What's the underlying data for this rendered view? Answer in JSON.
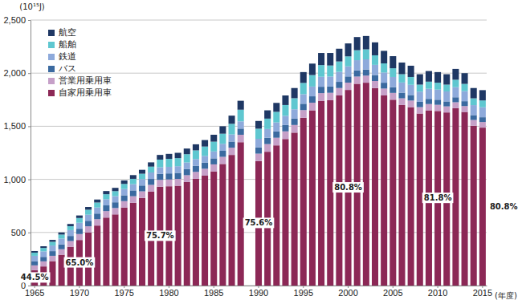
{
  "chart_data": {
    "type": "bar",
    "stacked": true,
    "grid": true,
    "legend": "top-left",
    "y_label": "(10¹⁵J)",
    "x_label": "(年度)",
    "categories": [
      "1965",
      null,
      null,
      null,
      null,
      "1970",
      null,
      null,
      null,
      null,
      "1975",
      null,
      null,
      null,
      null,
      "1980",
      null,
      null,
      null,
      null,
      "1985",
      null,
      null,
      null,
      null,
      "1990",
      null,
      null,
      null,
      null,
      "1995",
      null,
      null,
      null,
      null,
      "2000",
      null,
      null,
      null,
      null,
      "2005",
      null,
      null,
      null,
      null,
      "2010",
      null,
      null,
      null,
      null,
      "2015"
    ],
    "ylim": [
      0,
      2500
    ],
    "yticks": [
      0,
      500,
      {
        "value": 1000,
        "label": "1,000"
      },
      {
        "value": 1500,
        "label": "1,500"
      },
      {
        "value": 2000,
        "label": "2,000"
      },
      {
        "value": 2500,
        "label": "2,500"
      }
    ],
    "series": [
      {
        "name": "自家用乗用車",
        "color": "#8c2856",
        "values": [
          145,
          180,
          230,
          290,
          365,
          429,
          500,
          565,
          640,
          670,
          735,
          780,
          825,
          885,
          931,
          935,
          940,
          975,
          1005,
          1035,
          1075,
          1145,
          1230,
          1350,
          null,
          1172,
          1260,
          1320,
          1380,
          1440,
          1580,
          1650,
          1740,
          1745,
          1790,
          1842,
          1900,
          1910,
          1860,
          1790,
          1750,
          1700,
          1680,
          1620,
          1650,
          1644,
          1630,
          1670,
          1635,
          1505,
          1487
        ]
      },
      {
        "name": "営業用乗用車",
        "color": "#c6a0c8",
        "values": [
          45,
          48,
          50,
          52,
          54,
          56,
          58,
          60,
          61,
          60,
          60,
          61,
          62,
          63,
          64,
          64,
          64,
          64,
          65,
          65,
          66,
          67,
          68,
          70,
          null,
          70,
          72,
          72,
          72,
          72,
          72,
          72,
          72,
          70,
          70,
          69,
          68,
          67,
          66,
          65,
          64,
          63,
          62,
          60,
          59,
          58,
          57,
          56,
          55,
          54,
          53
        ]
      },
      {
        "name": "バス",
        "color": "#3b6aa0",
        "values": [
          40,
          42,
          44,
          46,
          48,
          50,
          52,
          53,
          54,
          54,
          55,
          55,
          55,
          56,
          57,
          57,
          57,
          57,
          57,
          57,
          57,
          57,
          58,
          58,
          null,
          60,
          60,
          60,
          60,
          60,
          60,
          60,
          60,
          59,
          58,
          58,
          58,
          57,
          56,
          55,
          54,
          53,
          52,
          50,
          49,
          48,
          47,
          47,
          46,
          46,
          45
        ]
      },
      {
        "name": "鉄道",
        "color": "#8eaadb",
        "values": [
          50,
          52,
          53,
          54,
          55,
          56,
          57,
          57,
          58,
          58,
          59,
          59,
          60,
          61,
          62,
          62,
          63,
          63,
          64,
          64,
          65,
          66,
          67,
          68,
          null,
          80,
          82,
          84,
          86,
          88,
          90,
          92,
          94,
          94,
          94,
          95,
          96,
          96,
          96,
          96,
          96,
          96,
          96,
          96,
          95,
          95,
          94,
          95,
          95,
          94,
          94
        ]
      },
      {
        "name": "船舶",
        "color": "#5fc7d0",
        "values": [
          30,
          32,
          35,
          38,
          37,
          45,
          47,
          47,
          47,
          47,
          48,
          50,
          51,
          55,
          72,
          75,
          76,
          78,
          82,
          88,
          92,
          95,
          100,
          110,
          null,
          95,
          98,
          100,
          102,
          104,
          106,
          108,
          110,
          104,
          98,
          94,
          94,
          94,
          90,
          86,
          82,
          78,
          74,
          66,
          67,
          65,
          64,
          70,
          68,
          64,
          64
        ]
      },
      {
        "name": "航空",
        "color": "#1f3864",
        "values": [
          15,
          16,
          18,
          20,
          21,
          24,
          26,
          28,
          30,
          31,
          33,
          35,
          37,
          40,
          44,
          47,
          50,
          53,
          57,
          61,
          65,
          70,
          77,
          84,
          null,
          73,
          78,
          84,
          90,
          96,
          102,
          108,
          114,
          118,
          120,
          122,
          124,
          126,
          122,
          118,
          114,
          110,
          106,
          98,
          100,
          100,
          98,
          102,
          101,
          97,
          97
        ]
      }
    ],
    "annotations": [
      {
        "index": 0,
        "text": "44.5%"
      },
      {
        "index": 5,
        "text": "65.0%"
      },
      {
        "index": 14,
        "text": "75.7%"
      },
      {
        "index": 25,
        "text": "75.6%"
      },
      {
        "index": 35,
        "text": "80.8%"
      },
      {
        "index": 45,
        "text": "81.8%"
      },
      {
        "index": 50,
        "text": "80.8%"
      }
    ]
  }
}
